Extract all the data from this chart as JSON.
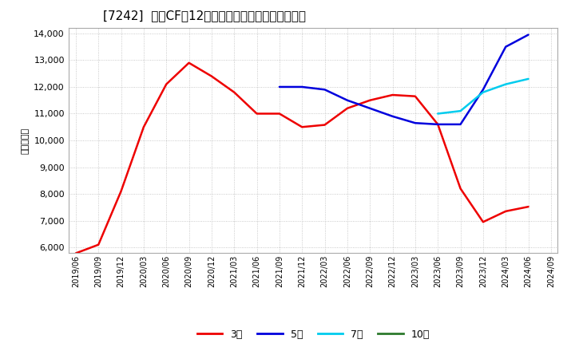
{
  "title": "[7242]  営業CFの12か月移動合計の標準偏差の推移",
  "ylabel": "（百万円）",
  "ylim": [
    5800,
    14200
  ],
  "yticks": [
    6000,
    7000,
    8000,
    9000,
    10000,
    11000,
    12000,
    13000,
    14000
  ],
  "background_color": "#ffffff",
  "grid_color": "#bbbbbb",
  "series": {
    "3year": {
      "color": "#ee0000",
      "label": "3年",
      "x": [
        "2019/06",
        "2019/09",
        "2019/12",
        "2020/03",
        "2020/06",
        "2020/09",
        "2020/12",
        "2021/03",
        "2021/06",
        "2021/09",
        "2021/12",
        "2022/03",
        "2022/06",
        "2022/09",
        "2022/12",
        "2023/03",
        "2023/06",
        "2023/09",
        "2023/12",
        "2024/03",
        "2024/06"
      ],
      "y": [
        5780,
        6100,
        8100,
        10500,
        12100,
        12900,
        12400,
        11800,
        11000,
        11000,
        10500,
        10580,
        11200,
        11500,
        11700,
        11650,
        10600,
        8200,
        6950,
        7350,
        7520
      ]
    },
    "5year": {
      "color": "#0000dd",
      "label": "5年",
      "x": [
        "2021/09",
        "2021/12",
        "2022/03",
        "2022/06",
        "2022/09",
        "2022/12",
        "2023/03",
        "2023/06",
        "2023/09",
        "2023/12",
        "2024/03",
        "2024/06"
      ],
      "y": [
        12000,
        12000,
        11900,
        11500,
        11200,
        10900,
        10650,
        10600,
        10600,
        11900,
        13500,
        13950
      ]
    },
    "7year": {
      "color": "#00ccee",
      "label": "7年",
      "x": [
        "2023/06",
        "2023/09",
        "2023/12",
        "2024/03",
        "2024/06"
      ],
      "y": [
        11000,
        11100,
        11800,
        12100,
        12300
      ]
    },
    "10year": {
      "color": "#2d7a2d",
      "label": "10年",
      "x": [],
      "y": []
    }
  },
  "xticks": [
    "2019/06",
    "2019/09",
    "2019/12",
    "2020/03",
    "2020/06",
    "2020/09",
    "2020/12",
    "2021/03",
    "2021/06",
    "2021/09",
    "2021/12",
    "2022/03",
    "2022/06",
    "2022/09",
    "2022/12",
    "2023/03",
    "2023/06",
    "2023/09",
    "2023/12",
    "2024/03",
    "2024/06",
    "2024/09"
  ],
  "legend_labels": [
    "3年",
    "5年",
    "7年",
    "10年"
  ],
  "legend_colors": [
    "#ee0000",
    "#0000dd",
    "#00ccee",
    "#2d7a2d"
  ]
}
